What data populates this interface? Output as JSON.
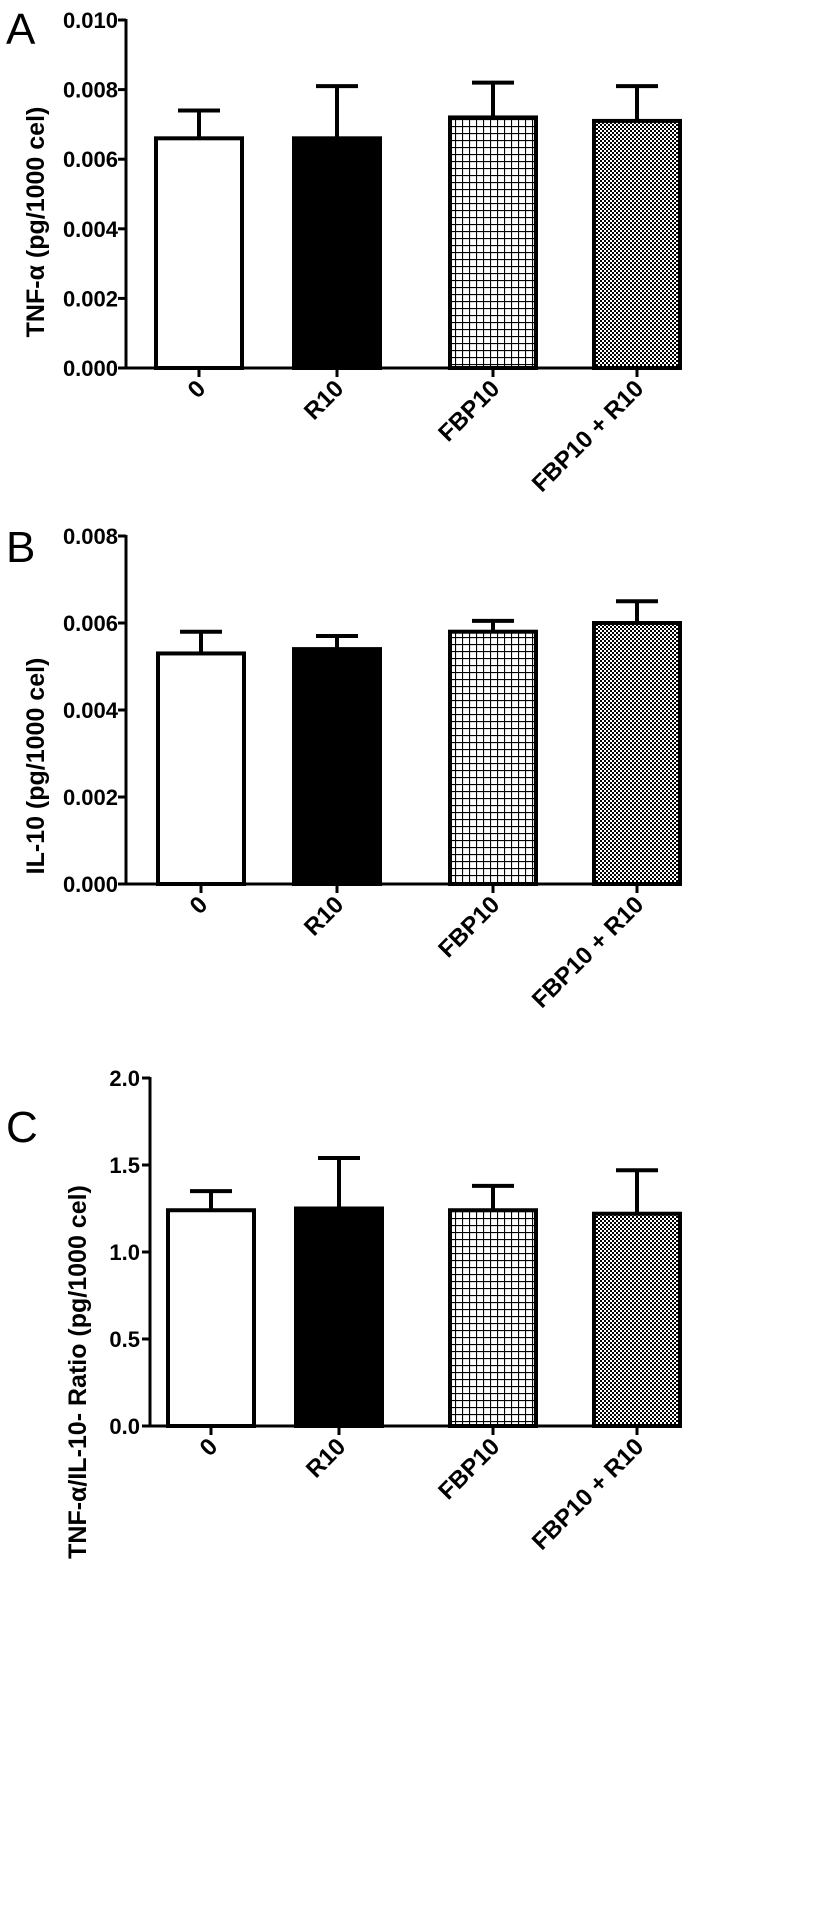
{
  "chart_data": [
    {
      "type": "bar",
      "panel": "A",
      "ylabel": "TNF-α  (pg/1000 cel)",
      "categories": [
        "0",
        "R10",
        "FBP10",
        "FBP10 + R10"
      ],
      "values": [
        0.0066,
        0.0066,
        0.0072,
        0.0071
      ],
      "errors": [
        0.0008,
        0.0015,
        0.001,
        0.001
      ],
      "ylim": [
        0,
        0.01
      ],
      "yticks": [
        "0.000",
        "0.002",
        "0.004",
        "0.006",
        "0.008",
        "0.010"
      ],
      "fills": [
        "white",
        "black",
        "grid",
        "dots"
      ],
      "grid": false
    },
    {
      "type": "bar",
      "panel": "B",
      "ylabel": "IL-10 (pg/1000 cel)",
      "categories": [
        "0",
        "R10",
        "FBP10",
        "FBP10 + R10"
      ],
      "values": [
        0.0053,
        0.0054,
        0.0058,
        0.006
      ],
      "errors": [
        0.0005,
        0.0003,
        0.00025,
        0.0005
      ],
      "ylim": [
        0,
        0.008
      ],
      "yticks": [
        "0.000",
        "0.002",
        "0.004",
        "0.006",
        "0.008"
      ],
      "fills": [
        "white",
        "black",
        "grid",
        "dots"
      ],
      "grid": false
    },
    {
      "type": "bar",
      "panel": "C",
      "ylabel": "TNF-α/IL-10- Ratio (pg/1000 cel)",
      "categories": [
        "0",
        "R10",
        "FBP10",
        "FBP10 + R10"
      ],
      "values": [
        1.24,
        1.25,
        1.24,
        1.22
      ],
      "errors": [
        0.11,
        0.29,
        0.14,
        0.25
      ],
      "ylim": [
        0,
        2.0
      ],
      "yticks": [
        "0.0",
        "0.5",
        "1.0",
        "1.5",
        "2.0"
      ],
      "fills": [
        "white",
        "black",
        "grid",
        "dots"
      ],
      "grid": false
    }
  ]
}
